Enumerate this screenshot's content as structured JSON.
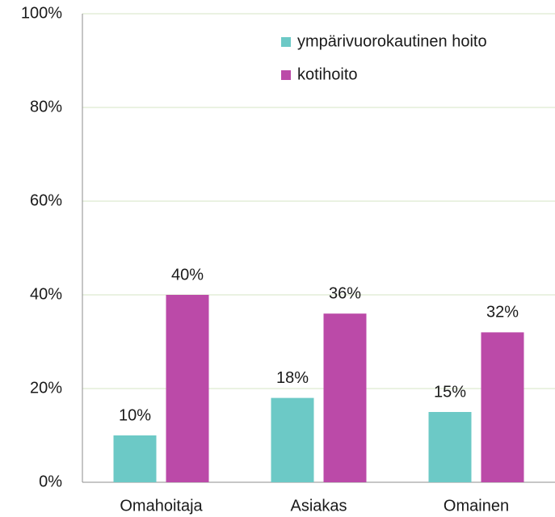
{
  "chart_data": {
    "type": "bar",
    "categories": [
      "Omahoitaja",
      "Asiakas",
      "Omainen"
    ],
    "series": [
      {
        "name": "ympärivuorokautinen hoito",
        "color": "#6cc9c6",
        "values": [
          10,
          18,
          15
        ],
        "value_labels": [
          "10%",
          "18%",
          "15%"
        ]
      },
      {
        "name": "kotihoito",
        "color": "#bb4aa8",
        "values": [
          40,
          36,
          32
        ],
        "value_labels": [
          "40%",
          "36%",
          "32%"
        ]
      }
    ],
    "ylim": [
      0,
      100
    ],
    "yticks": [
      {
        "value": 0,
        "label": "0%"
      },
      {
        "value": 20,
        "label": "20%"
      },
      {
        "value": 40,
        "label": "40%"
      },
      {
        "value": 60,
        "label": "60%"
      },
      {
        "value": 80,
        "label": "80%"
      },
      {
        "value": 100,
        "label": "100%"
      }
    ],
    "grid": true,
    "legend": "top-right"
  }
}
